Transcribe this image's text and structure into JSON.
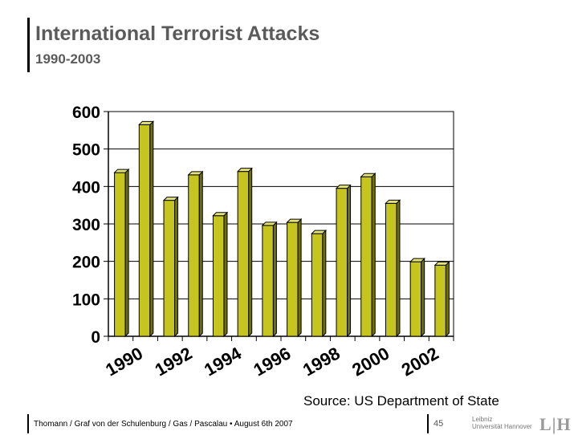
{
  "slide": {
    "title": "International Terrorist Attacks",
    "subtitle": "1990-2003",
    "source": "Source: US Department of State",
    "footer": "Thomann / Graf von der Schulenburg / Gas / Pascalau  •  August 6th  2007",
    "page_number": "45",
    "logo_line1": "Leibniz",
    "logo_line2": "Universität Hannover",
    "logo_mark": "L|H"
  },
  "chart_data": {
    "type": "bar",
    "title": "",
    "xlabel": "",
    "ylabel": "",
    "categories": [
      "1990",
      "1991",
      "1992",
      "1993",
      "1994",
      "1995",
      "1996",
      "1997",
      "1998",
      "1999",
      "2000",
      "2001",
      "2002",
      "2003"
    ],
    "x_tick_labels": [
      "1990",
      "1992",
      "1994",
      "1996",
      "1998",
      "2000",
      "2002"
    ],
    "values": [
      437,
      565,
      363,
      431,
      322,
      440,
      296,
      304,
      274,
      395,
      426,
      355,
      199,
      190
    ],
    "ylim": [
      0,
      600
    ],
    "yticks": [
      0,
      100,
      200,
      300,
      400,
      500,
      600
    ],
    "grid": true,
    "bar_color": "#c6c51f",
    "bar_side_color": "#6f6e0e",
    "bar_top_color": "#e4e37a"
  }
}
